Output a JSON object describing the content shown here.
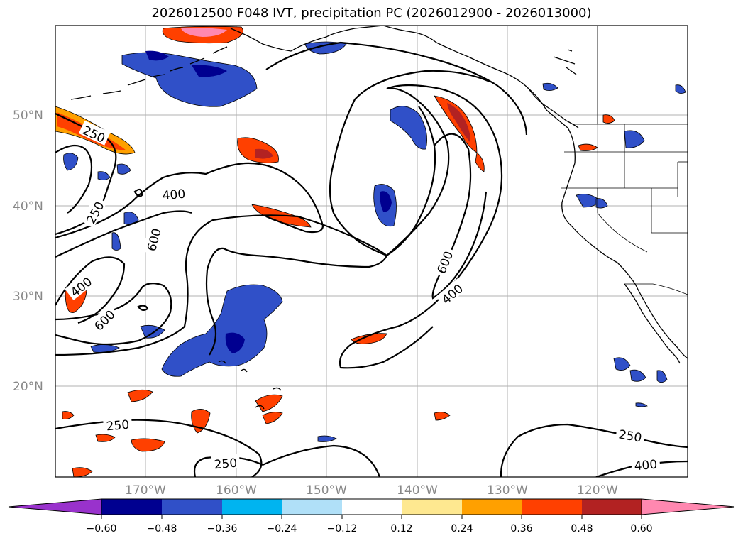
{
  "title": "2026012500 F048 IVT, precipitation PC (2026012900 - 2026013000)",
  "lat_labels": [
    "50°N",
    "40°N",
    "30°N",
    "20°N"
  ],
  "lon_labels": [
    "170°W",
    "160°W",
    "150°W",
    "140°W",
    "130°W",
    "120°W"
  ],
  "contour_labels": [
    "250",
    "250",
    "400",
    "600",
    "400",
    "600",
    "600",
    "400",
    "250",
    "250",
    "250",
    "400"
  ],
  "colorbar": {
    "ticks": [
      "−0.60",
      "−0.48",
      "−0.36",
      "−0.24",
      "−0.12",
      "0.12",
      "0.24",
      "0.36",
      "0.48",
      "0.60"
    ],
    "colors": [
      "#9932cc",
      "#000090",
      "#3050c8",
      "#00b4f0",
      "#b0e0f8",
      "#ffffff",
      "#fee890",
      "#ffa000",
      "#ff4000",
      "#b22222",
      "#ff88b0"
    ]
  },
  "chart_data": {
    "type": "map",
    "title": "2026012500 F048 IVT, precipitation PC (2026012900 - 2026013000)",
    "lat_ticks": [
      50,
      40,
      30,
      20
    ],
    "lon_ticks": [
      -170,
      -160,
      -150,
      -140,
      -130,
      -120
    ],
    "ivt_contour_levels": [
      250,
      400,
      600
    ],
    "pc_levels": [
      -0.6,
      -0.48,
      -0.36,
      -0.24,
      -0.12,
      0.12,
      0.24,
      0.36,
      0.48,
      0.6
    ]
  }
}
